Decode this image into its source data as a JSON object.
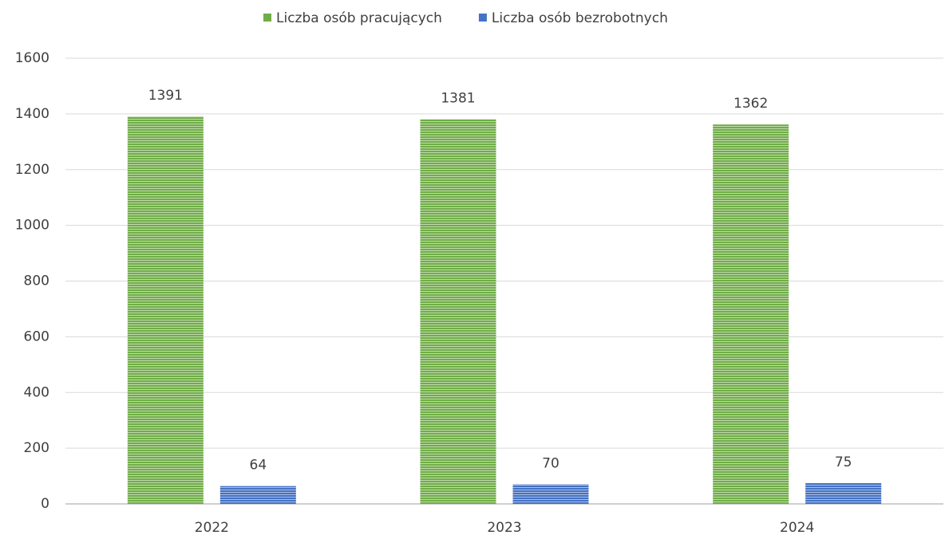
{
  "chart_data": {
    "type": "bar",
    "categories": [
      "2022",
      "2023",
      "2024"
    ],
    "series": [
      {
        "name": "Liczba osób pracujących",
        "color": "#70ad47",
        "values": [
          1391,
          1381,
          1362
        ]
      },
      {
        "name": "Liczba osób bezrobotnych",
        "color": "#4472c4",
        "values": [
          64,
          70,
          75
        ]
      }
    ],
    "ylim": [
      0,
      1600
    ],
    "yticks": [
      0,
      200,
      400,
      600,
      800,
      1000,
      1200,
      1400,
      1600
    ],
    "grid": true,
    "legend": "top"
  }
}
